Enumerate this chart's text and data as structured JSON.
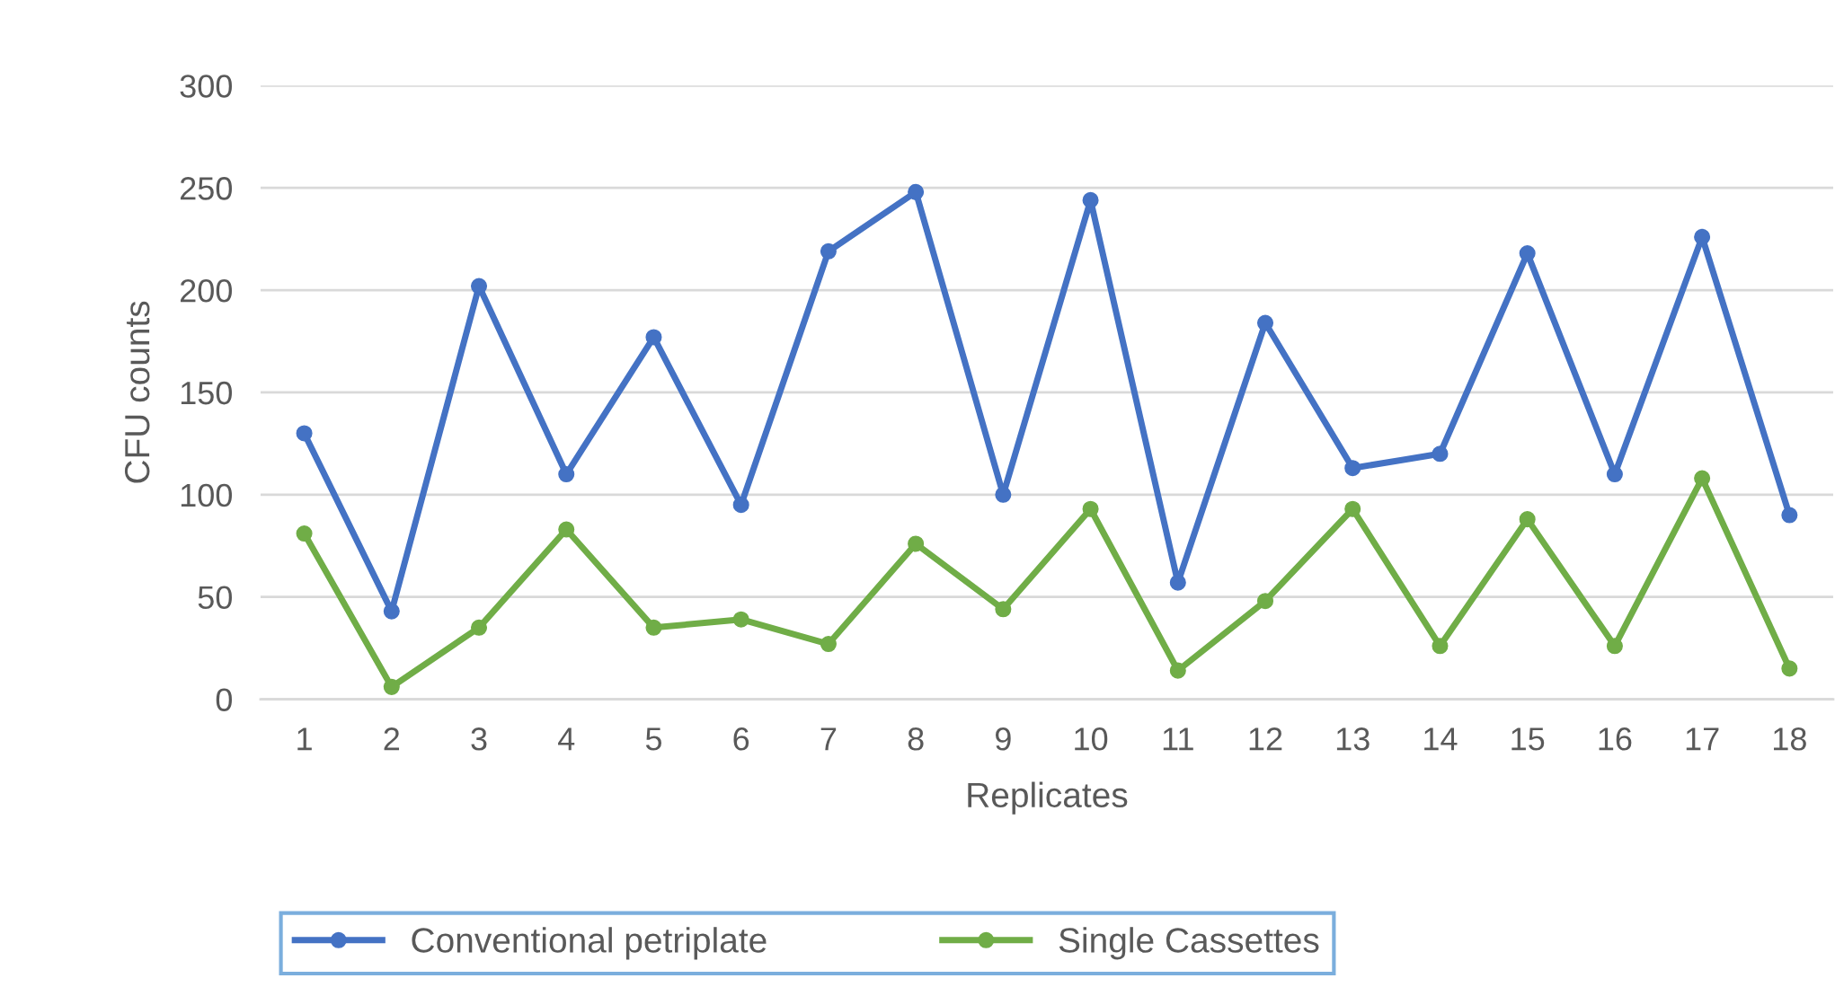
{
  "chart_data": {
    "type": "line",
    "xlabel": "Replicates",
    "ylabel": "CFU counts",
    "categories": [
      "1",
      "2",
      "3",
      "4",
      "5",
      "6",
      "7",
      "8",
      "9",
      "10",
      "11",
      "12",
      "13",
      "14",
      "15",
      "16",
      "17",
      "18"
    ],
    "series": [
      {
        "name": "Conventional petriplate",
        "color": "#4472c4",
        "values": [
          130,
          43,
          202,
          110,
          177,
          95,
          219,
          248,
          100,
          244,
          57,
          184,
          113,
          120,
          218,
          110,
          226,
          90
        ]
      },
      {
        "name": "Single Cassettes",
        "color": "#70ad47",
        "values": [
          81,
          6,
          35,
          83,
          35,
          39,
          27,
          76,
          44,
          93,
          14,
          48,
          93,
          26,
          88,
          26,
          108,
          15
        ]
      }
    ],
    "ylim": [
      0,
      300
    ],
    "yticks": [
      0,
      50,
      100,
      150,
      200,
      250,
      300
    ],
    "grid": "y",
    "legend": "bottom",
    "marker": "circle",
    "line_style": "solid"
  }
}
